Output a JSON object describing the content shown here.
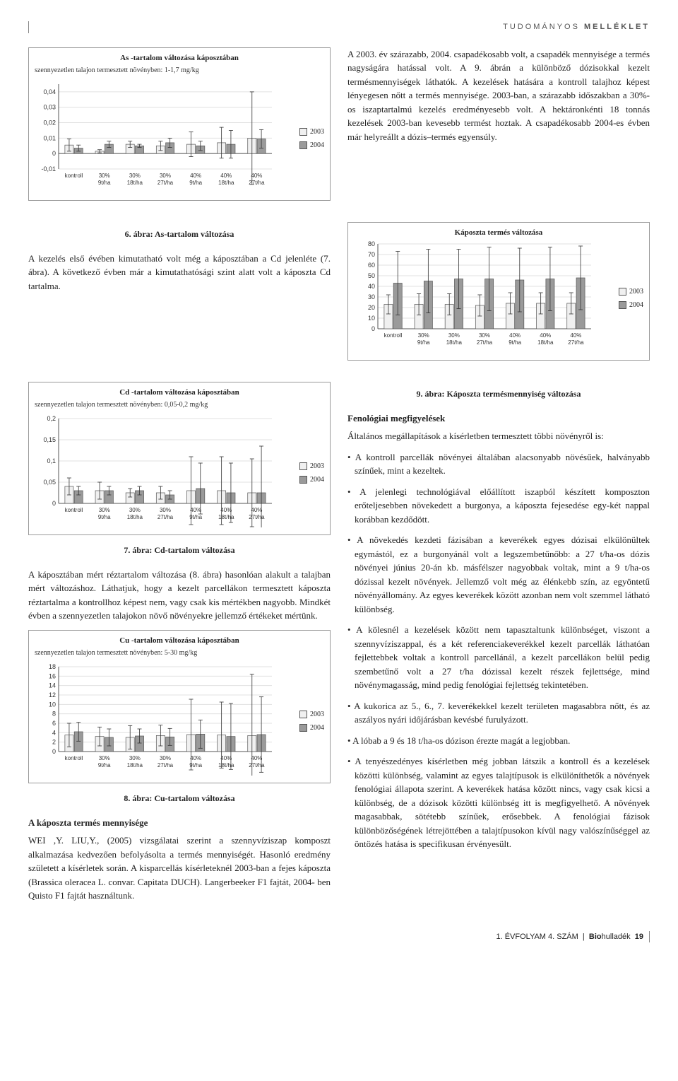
{
  "header": {
    "part1": "TUDOMÁNYOS",
    "part2": "MELLÉKLET"
  },
  "chart_common": {
    "categories": [
      "kontroll",
      "30% - 9t/ha",
      "30% - 18t/ha",
      "30% - 27t/ha",
      "40% - 9t/ha",
      "40% - 18t/ha",
      "40% - 27t/ha"
    ],
    "legend": [
      "2003",
      "2004"
    ],
    "series_colors": [
      "#f0f0f0",
      "#9a9a9a"
    ],
    "grid_color": "#e0e0e0",
    "axis_color": "#555555",
    "tick_font": 9,
    "category_font": 8
  },
  "chart6": {
    "title": "As -tartalom változása káposztában",
    "subtitle": "szennyezetlen talajon termesztett növényben: 1-1,7 mg/kg",
    "ymin": -0.01,
    "ymax": 0.045,
    "ytick_step": 0.01,
    "series": [
      {
        "name": "2003",
        "values": [
          0.0055,
          0.0015,
          0.006,
          0.005,
          0.006,
          0.007,
          0.01
        ],
        "err": [
          0.004,
          0.001,
          0.002,
          0.003,
          0.008,
          0.01,
          0.03
        ]
      },
      {
        "name": "2004",
        "values": [
          0.0035,
          0.006,
          0.005,
          0.007,
          0.005,
          0.006,
          0.0095
        ],
        "err": [
          0.002,
          0.002,
          0.001,
          0.003,
          0.003,
          0.009,
          0.006
        ]
      }
    ]
  },
  "chart7": {
    "title": "Cd -tartalom változása káposztában",
    "subtitle": "szennyezetlen talajon termesztett növényben: 0,05-0,2 mg/kg",
    "ymin": 0,
    "ymax": 0.2,
    "ytick_step": 0.05,
    "series": [
      {
        "name": "2003",
        "values": [
          0.04,
          0.03,
          0.025,
          0.025,
          0.03,
          0.03,
          0.025
        ],
        "err": [
          0.02,
          0.02,
          0.01,
          0.015,
          0.08,
          0.08,
          0.08
        ]
      },
      {
        "name": "2004",
        "values": [
          0.03,
          0.03,
          0.03,
          0.02,
          0.035,
          0.025,
          0.025
        ],
        "err": [
          0.01,
          0.01,
          0.01,
          0.01,
          0.06,
          0.07,
          0.11
        ]
      }
    ]
  },
  "chart8": {
    "title": "Cu -tartalom változása káposztában",
    "subtitle": "szennyezetlen talajon termesztett növényben: 5-30 mg/kg",
    "ymin": 0,
    "ymax": 18,
    "ytick_step": 2,
    "series": [
      {
        "name": "2003",
        "values": [
          3.5,
          3.2,
          3.0,
          3.4,
          3.6,
          3.5,
          3.4
        ],
        "err": [
          2.5,
          2.0,
          2.5,
          2.2,
          7.5,
          7.0,
          13
        ]
      },
      {
        "name": "2004",
        "values": [
          4.2,
          3.0,
          3.3,
          3.1,
          3.7,
          3.2,
          3.6
        ],
        "err": [
          2.0,
          1.8,
          1.5,
          1.8,
          3.0,
          7.0,
          8.0
        ]
      }
    ]
  },
  "chart9": {
    "title": "Káposzta termés változása",
    "subtitle": "",
    "ymin": 0,
    "ymax": 80,
    "ytick_step": 10,
    "series": [
      {
        "name": "2003",
        "values": [
          23,
          23,
          23,
          22,
          24,
          24,
          24
        ],
        "err": [
          9,
          10,
          10,
          10,
          10,
          10,
          10
        ]
      },
      {
        "name": "2004",
        "values": [
          43,
          45,
          47,
          47,
          46,
          47,
          48
        ],
        "err": [
          30,
          30,
          28,
          30,
          30,
          30,
          30
        ]
      }
    ]
  },
  "captions": {
    "c6": "6. ábra: As-tartalom változása",
    "c7": "7. ábra: Cd-tartalom változása",
    "c8": "8. ábra: Cu-tartalom változása",
    "c9": "9. ábra: Káposzta termésmennyiség változása"
  },
  "text": {
    "p_intro_right": "A 2003. év szárazabb, 2004. csapadékosabb volt, a csapadék mennyisége a termés nagyságára hatással volt. A 9. ábrán a különböző dózisokkal kezelt termésmennyiségek láthatók. A kezelések hatására a kontroll talajhoz képest lényegesen nőtt a termés mennyisége. 2003-ban, a szárazabb időszakban a 30%-os iszaptartalmú kezelés eredményesebb volt. A hektáronkénti 18 tonnás kezelések 2003-ban kevesebb termést hoztak. A csapadékosabb 2004-es évben már helyreállt a dózis–termés egyensúly.",
    "p_after6": "A kezelés első évében kimutatható volt még a káposztában a Cd jelenléte (7. ábra). A következő évben már a kimutathatósági szint alatt volt a káposzta Cd tartalma.",
    "p_after7": "A káposztában mért réztartalom változása (8. ábra) hasonlóan alakult a talajban mért változáshoz. Láthatjuk, hogy a kezelt parcellákon termesztett káposzta réztartalma a kontrollhoz képest nem, vagy csak kis mértékben nagyobb. Mindkét évben a szennyezetlen talajokon növő növényekre jellemző értékeket mértünk.",
    "fen_heading": "Fenológiai megfigyelések",
    "fen_intro": "Általános megállapítások a kísérletben termesztett többi növényről is:",
    "fen_b1": "• A kontroll parcellák növényei általában alacsonyabb növésűek, halványabb színűek, mint a kezeltek.",
    "fen_b2": "• A jelenlegi technológiával előállított iszapból készített komposzton erőteljesebben növekedett a burgonya, a káposzta fejesedése egy-két nappal korábban kezdődött.",
    "fen_b3": "• A növekedés kezdeti fázisában a keverékek egyes dózisai elkülönültek egymástól, ez a burgonyánál volt a legszembetűnőbb: a 27 t/ha-os dózis növényei június 20-án kb. másfélszer nagyobbak voltak, mint a 9 t/ha-os dózissal kezelt növények. Jellemző volt még az élénkebb szín, az egyöntetű növényállomány. Az egyes keverékek között azonban nem volt szemmel látható különbség.",
    "fen_b4": "• A kölesnél a kezelések között nem tapasztaltunk különbséget, viszont a szennyvíziszappal, és a két referenciakeverékkel kezelt parcellák láthatóan fejlettebbek voltak a kontroll parcellánál, a kezelt parcellákon belül pedig szembetűnő volt a 27 t/ha dózissal kezelt részek fejlettsége, mind növénymagasság, mind pedig fenológiai fejlettség tekintetében.",
    "fen_b5": "• A kukorica az 5., 6., 7. keverékekkel kezelt területen magasabbra nőtt, és az aszályos nyári időjárásban kevésbé furulyázott.",
    "fen_b6": "• A lóbab a 9 és 18 t/ha-os dózison érezte magát a legjobban.",
    "fen_b7": "• A tenyészedényes kísérletben még jobban látszik a kontroll és a kezelések közötti különbség, valamint az egyes talajtípusok is elkülöníthetők a növények fenológiai állapota szerint. A keverékek hatása között nincs, vagy csak kicsi a különbség, de a dózisok közötti különbség itt is megfigyelhető. A növények magasabbak, sötétebb színűek, erősebbek. A fenológiai fázisok különbözőségének létrejöttében a talajtípusokon kívül nagy valószínűséggel az öntözés hatása is specifikusan érvényesült.",
    "yield_heading": "A káposzta termés mennyisége",
    "yield_p": "WEI ,Y. LIU,Y., (2005) vizsgálatai szerint a szennyvíziszap komposzt alkalmazása kedvezően befolyásolta a termés mennyiségét. Hasonló eredmény született a kísérletek során. A kisparcellás kísérleteknél 2003-ban a fejes káposzta (Brassica oleracea L. convar. Capitata DUCH). Langerbeeker F1 fajtát, 2004- ben Quisto F1 fajtát használtunk."
  },
  "footer": {
    "line": "1. ÉVFOLYAM 4. SZÁM",
    "brand1": "Bio",
    "brand2": "hulladék",
    "page": "19"
  }
}
